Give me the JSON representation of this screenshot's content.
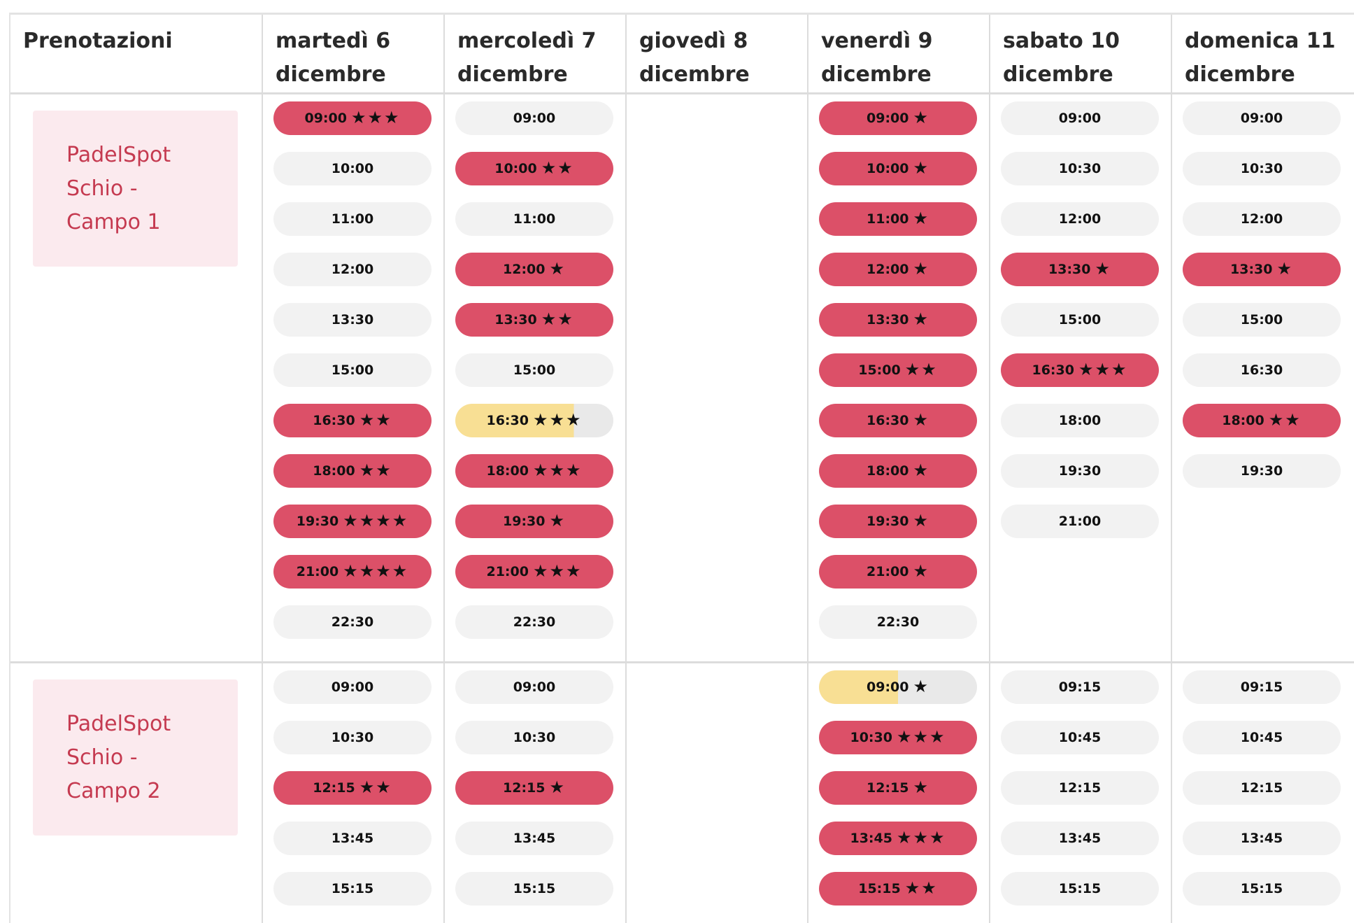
{
  "header": {
    "title": "Prenotazioni",
    "days": [
      {
        "line1": "martedì 6",
        "line2": "dicembre"
      },
      {
        "line1": "mercoledì 7",
        "line2": "dicembre"
      },
      {
        "line1": "giovedì 8",
        "line2": "dicembre"
      },
      {
        "line1": "venerdì 9",
        "line2": "dicembre"
      },
      {
        "line1": "sabato 10",
        "line2": "dicembre"
      },
      {
        "line1": "domenica 11",
        "line2": "dicembre"
      }
    ]
  },
  "colors": {
    "booked": "#dc5068",
    "free": "#f2f2f2",
    "partial_fill": "#f8df94",
    "partial_rest": "#e9e9e9",
    "court_bg": "#fbeaee",
    "court_text": "#c53a50"
  },
  "courts": [
    {
      "name_lines": [
        "PadelSpot",
        "Schio -",
        "Campo 1"
      ],
      "days": [
        [
          {
            "time": "09:00",
            "status": "booked",
            "stars": 3
          },
          {
            "time": "10:00",
            "status": "free",
            "stars": 0
          },
          {
            "time": "11:00",
            "status": "free",
            "stars": 0
          },
          {
            "time": "12:00",
            "status": "free",
            "stars": 0
          },
          {
            "time": "13:30",
            "status": "free",
            "stars": 0
          },
          {
            "time": "15:00",
            "status": "free",
            "stars": 0
          },
          {
            "time": "16:30",
            "status": "booked",
            "stars": 2
          },
          {
            "time": "18:00",
            "status": "booked",
            "stars": 2
          },
          {
            "time": "19:30",
            "status": "booked",
            "stars": 4
          },
          {
            "time": "21:00",
            "status": "booked",
            "stars": 4
          },
          {
            "time": "22:30",
            "status": "free",
            "stars": 0
          }
        ],
        [
          {
            "time": "09:00",
            "status": "free",
            "stars": 0
          },
          {
            "time": "10:00",
            "status": "booked",
            "stars": 2
          },
          {
            "time": "11:00",
            "status": "free",
            "stars": 0
          },
          {
            "time": "12:00",
            "status": "booked",
            "stars": 1
          },
          {
            "time": "13:30",
            "status": "booked",
            "stars": 2
          },
          {
            "time": "15:00",
            "status": "free",
            "stars": 0
          },
          {
            "time": "16:30",
            "status": "partial",
            "stars": 3,
            "fill_pct": 75
          },
          {
            "time": "18:00",
            "status": "booked",
            "stars": 3
          },
          {
            "time": "19:30",
            "status": "booked",
            "stars": 1
          },
          {
            "time": "21:00",
            "status": "booked",
            "stars": 3
          },
          {
            "time": "22:30",
            "status": "free",
            "stars": 0
          }
        ],
        [],
        [
          {
            "time": "09:00",
            "status": "booked",
            "stars": 1
          },
          {
            "time": "10:00",
            "status": "booked",
            "stars": 1
          },
          {
            "time": "11:00",
            "status": "booked",
            "stars": 1
          },
          {
            "time": "12:00",
            "status": "booked",
            "stars": 1
          },
          {
            "time": "13:30",
            "status": "booked",
            "stars": 1
          },
          {
            "time": "15:00",
            "status": "booked",
            "stars": 2
          },
          {
            "time": "16:30",
            "status": "booked",
            "stars": 1
          },
          {
            "time": "18:00",
            "status": "booked",
            "stars": 1
          },
          {
            "time": "19:30",
            "status": "booked",
            "stars": 1
          },
          {
            "time": "21:00",
            "status": "booked",
            "stars": 1
          },
          {
            "time": "22:30",
            "status": "free",
            "stars": 0
          }
        ],
        [
          {
            "time": "09:00",
            "status": "free",
            "stars": 0
          },
          {
            "time": "10:30",
            "status": "free",
            "stars": 0
          },
          {
            "time": "12:00",
            "status": "free",
            "stars": 0
          },
          {
            "time": "13:30",
            "status": "booked",
            "stars": 1
          },
          {
            "time": "15:00",
            "status": "free",
            "stars": 0
          },
          {
            "time": "16:30",
            "status": "booked",
            "stars": 3
          },
          {
            "time": "18:00",
            "status": "free",
            "stars": 0
          },
          {
            "time": "19:30",
            "status": "free",
            "stars": 0
          },
          {
            "time": "21:00",
            "status": "free",
            "stars": 0
          }
        ],
        [
          {
            "time": "09:00",
            "status": "free",
            "stars": 0
          },
          {
            "time": "10:30",
            "status": "free",
            "stars": 0
          },
          {
            "time": "12:00",
            "status": "free",
            "stars": 0
          },
          {
            "time": "13:30",
            "status": "booked",
            "stars": 1
          },
          {
            "time": "15:00",
            "status": "free",
            "stars": 0
          },
          {
            "time": "16:30",
            "status": "free",
            "stars": 0
          },
          {
            "time": "18:00",
            "status": "booked",
            "stars": 2
          },
          {
            "time": "19:30",
            "status": "free",
            "stars": 0
          }
        ]
      ]
    },
    {
      "name_lines": [
        "PadelSpot",
        "Schio -",
        "Campo 2"
      ],
      "days": [
        [
          {
            "time": "09:00",
            "status": "free",
            "stars": 0
          },
          {
            "time": "10:30",
            "status": "free",
            "stars": 0
          },
          {
            "time": "12:15",
            "status": "booked",
            "stars": 2
          },
          {
            "time": "13:45",
            "status": "free",
            "stars": 0
          },
          {
            "time": "15:15",
            "status": "free",
            "stars": 0
          }
        ],
        [
          {
            "time": "09:00",
            "status": "free",
            "stars": 0
          },
          {
            "time": "10:30",
            "status": "free",
            "stars": 0
          },
          {
            "time": "12:15",
            "status": "booked",
            "stars": 1
          },
          {
            "time": "13:45",
            "status": "free",
            "stars": 0
          },
          {
            "time": "15:15",
            "status": "free",
            "stars": 0
          }
        ],
        [],
        [
          {
            "time": "09:00",
            "status": "partial",
            "stars": 1,
            "fill_pct": 50
          },
          {
            "time": "10:30",
            "status": "booked",
            "stars": 3
          },
          {
            "time": "12:15",
            "status": "booked",
            "stars": 1
          },
          {
            "time": "13:45",
            "status": "booked",
            "stars": 3
          },
          {
            "time": "15:15",
            "status": "booked",
            "stars": 2
          }
        ],
        [
          {
            "time": "09:15",
            "status": "free",
            "stars": 0
          },
          {
            "time": "10:45",
            "status": "free",
            "stars": 0
          },
          {
            "time": "12:15",
            "status": "free",
            "stars": 0
          },
          {
            "time": "13:45",
            "status": "free",
            "stars": 0
          },
          {
            "time": "15:15",
            "status": "free",
            "stars": 0
          }
        ],
        [
          {
            "time": "09:15",
            "status": "free",
            "stars": 0
          },
          {
            "time": "10:45",
            "status": "free",
            "stars": 0
          },
          {
            "time": "12:15",
            "status": "free",
            "stars": 0
          },
          {
            "time": "13:45",
            "status": "free",
            "stars": 0
          },
          {
            "time": "15:15",
            "status": "free",
            "stars": 0
          }
        ]
      ]
    }
  ]
}
